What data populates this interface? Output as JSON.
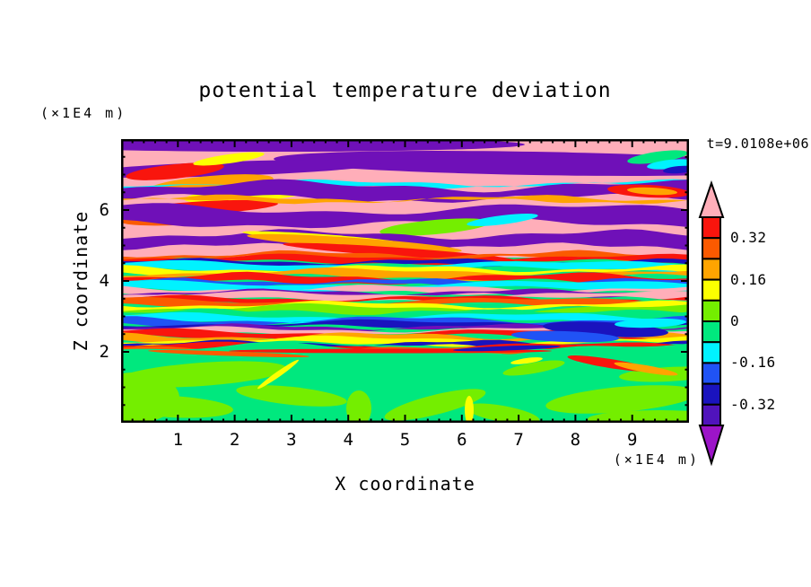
{
  "title": "potential temperature deviation",
  "annotations": {
    "y_units": "(×1E4 m)",
    "x_units": "(×1E4 m)",
    "time": "t=9.0108e+06"
  },
  "axes": {
    "x": {
      "label": "X coordinate",
      "min": 0,
      "max": 10,
      "major_ticks": [
        1,
        2,
        3,
        4,
        5,
        6,
        7,
        8,
        9
      ],
      "minor_step": 0.2
    },
    "y": {
      "label": "Z coordinate",
      "min": 0,
      "max": 8,
      "major_ticks": [
        2,
        4,
        6
      ],
      "minor_step": 0.5
    }
  },
  "palette": {
    "pk": "#FFAEB9",
    "rd": "#F9150D",
    "or": "#FB5A00",
    "oa": "#FFA400",
    "ye": "#FCFF00",
    "ch": "#74EE00",
    "sg": "#00E87E",
    "cy": "#00F2FF",
    "bl": "#2053F5",
    "nv": "#1A13BE",
    "vi": "#5013BC",
    "pu": "#6F10B8",
    "pa": "#9C14C8",
    "black": "#000000"
  },
  "colorbar": {
    "blocks_top_to_bottom": [
      "rd",
      "or",
      "oa",
      "ye",
      "ch",
      "sg",
      "cy",
      "bl",
      "nv",
      "vi"
    ],
    "top_arrow_color": "pk",
    "bottom_arrow_color": "pa",
    "labels": [
      {
        "text": "0.32",
        "boundary": 1
      },
      {
        "text": "0.16",
        "boundary": 3
      },
      {
        "text": "0",
        "boundary": 5
      },
      {
        "text": "-0.16",
        "boundary": 7
      },
      {
        "text": "-0.32",
        "boundary": 9
      }
    ]
  },
  "chart_data": {
    "type": "filled_contour",
    "title": "potential temperature deviation",
    "xlabel": "X coordinate",
    "ylabel": "Z coordinate",
    "units": "×1E4 m",
    "time_annotation": "t=9.0108e+06",
    "x_range": [
      0,
      10
    ],
    "z_range": [
      0,
      8
    ],
    "levels": [
      -0.4,
      -0.32,
      -0.24,
      -0.16,
      -0.08,
      0,
      0.08,
      0.16,
      0.24,
      0.32,
      0.4
    ],
    "level_colors_low_to_high": [
      "pa",
      "vi",
      "nv",
      "bl",
      "cy",
      "sg",
      "ch",
      "ye",
      "oa",
      "or",
      "rd",
      "pk"
    ],
    "description": "Stably layered wave/turbulence field: smooth near-zero (green) region below z=2; dense multicolor filaments (±0.1-0.3) between z=2 and z=4.7; broad alternating pink (>0.4) and purple (<-0.4) bands with thin rainbow edges from z=4.7 to top at z=8.",
    "paint": [
      [
        "rect",
        0,
        0,
        633,
        316,
        "sg"
      ],
      [
        "rect",
        0,
        0,
        633,
        132,
        "pk"
      ],
      [
        "ell",
        170,
        6,
        280,
        8,
        0,
        "pu"
      ],
      [
        "ell",
        460,
        27,
        290,
        13,
        1,
        "pu"
      ],
      [
        "ell",
        120,
        33,
        170,
        8,
        -2,
        "pu"
      ],
      [
        "ell",
        598,
        20,
        34,
        6,
        -8,
        "sg"
      ],
      [
        "ell",
        612,
        28,
        26,
        5,
        -6,
        "cy"
      ],
      [
        "ell",
        622,
        34,
        18,
        4,
        -5,
        "nv"
      ],
      [
        "ell",
        60,
        36,
        55,
        8,
        -6,
        "rd"
      ],
      [
        "ell",
        100,
        50,
        70,
        9,
        -5,
        "oa"
      ],
      [
        "ell",
        140,
        62,
        70,
        8,
        -4,
        "ye"
      ],
      [
        "ell",
        95,
        76,
        80,
        7,
        -3,
        "rd"
      ],
      [
        "ell",
        60,
        90,
        60,
        6,
        -2,
        "or"
      ],
      [
        "ell",
        120,
        22,
        40,
        5,
        -8,
        "ye"
      ],
      [
        "rib",
        49,
        52,
        "cy",
        3,
        0.8,
        1.7
      ],
      [
        "rib",
        52,
        66,
        "pu",
        5,
        2.0,
        1.5
      ],
      [
        "rib",
        66,
        69,
        "oa",
        3,
        2.6,
        1.9
      ],
      [
        "ell",
        588,
        58,
        46,
        7,
        3,
        "rd"
      ],
      [
        "ell",
        592,
        58,
        28,
        4,
        3,
        "oa"
      ],
      [
        "rib",
        78,
        94,
        "pu",
        5,
        4.6,
        1.3
      ],
      [
        "ell",
        350,
        98,
        62,
        8,
        -5,
        "ch"
      ],
      [
        "ell",
        425,
        90,
        40,
        5,
        -7,
        "cy"
      ],
      [
        "rib",
        106,
        120,
        "pu",
        4,
        1.2,
        1.8
      ],
      [
        "ell",
        225,
        110,
        90,
        4,
        4,
        "ye"
      ],
      [
        "ell",
        260,
        116,
        120,
        6,
        4,
        "oa"
      ],
      [
        "ell",
        310,
        126,
        130,
        5,
        4,
        "rd"
      ],
      [
        "rib",
        128,
        133,
        "or",
        3,
        0.5,
        2.1
      ],
      [
        "rib",
        132,
        137,
        "rd",
        3,
        1.7,
        1.6
      ],
      [
        "rib",
        136,
        140,
        "nv",
        2.5,
        2.9,
        2.3
      ],
      [
        "rib",
        139,
        145,
        "cy",
        3,
        4.1,
        1.4
      ],
      [
        "rib",
        144,
        149,
        "ye",
        3,
        5.3,
        1.9
      ],
      [
        "rib",
        148,
        154,
        "oa",
        3.5,
        0.9,
        1.5
      ],
      [
        "rib",
        153,
        159,
        "rd",
        3.5,
        2.2,
        1.8
      ],
      [
        "rib",
        158,
        162,
        "bl",
        2.5,
        3.4,
        2.4
      ],
      [
        "rib",
        161,
        167,
        "cy",
        3,
        4.6,
        1.3
      ],
      [
        "rib",
        166,
        171,
        "pk",
        3,
        5.8,
        1.7
      ],
      [
        "rib",
        170,
        174,
        "pu",
        2.5,
        1.1,
        2.2
      ],
      [
        "rib",
        173,
        178,
        "pk",
        3,
        2.4,
        1.5
      ],
      [
        "rib",
        177,
        181,
        "rd",
        2.5,
        3.6,
        2.0
      ],
      [
        "rib",
        180,
        185,
        "or",
        3,
        4.8,
        1.4
      ],
      [
        "rib",
        184,
        189,
        "ye",
        3,
        0.3,
        1.8
      ],
      [
        "rib",
        188,
        194,
        "ch",
        3.5,
        1.5,
        1.5
      ],
      [
        "rib",
        193,
        198,
        "sg",
        3,
        2.7,
        2.1
      ],
      [
        "rib",
        197,
        202,
        "cy",
        3,
        3.9,
        1.6
      ],
      [
        "rib",
        201,
        206,
        "bl",
        3,
        5.1,
        1.9
      ],
      [
        "rib",
        205,
        210,
        "nv",
        3,
        0.6,
        1.4
      ],
      [
        "rib",
        209,
        213,
        "pu",
        2.5,
        1.8,
        2.2
      ],
      [
        "rib",
        212,
        216,
        "pk",
        2.5,
        3.0,
        1.7
      ],
      [
        "rib",
        215,
        220,
        "rd",
        3,
        4.2,
        1.5
      ],
      [
        "rib",
        219,
        224,
        "oa",
        3,
        5.4,
        2.0
      ],
      [
        "rib",
        223,
        228,
        "ye",
        3,
        0.8,
        1.6
      ],
      [
        "rib",
        227,
        231,
        "nv",
        2.5,
        2.0,
        2.3
      ],
      [
        "rib",
        230,
        235,
        "rd",
        3,
        3.2,
        1.5
      ],
      [
        "rib",
        234,
        238,
        "or",
        2.5,
        4.4,
        1.9
      ],
      [
        "ell",
        540,
        212,
        70,
        8,
        3,
        "nv"
      ],
      [
        "ell",
        495,
        220,
        60,
        6,
        2,
        "bl"
      ],
      [
        "ell",
        590,
        205,
        40,
        5,
        -2,
        "cy"
      ],
      [
        "rib",
        233,
        320,
        "sg",
        5,
        2.3,
        1.4
      ],
      [
        "ell",
        90,
        262,
        95,
        13,
        -4,
        "ch"
      ],
      [
        "ell",
        55,
        298,
        70,
        12,
        3,
        "ch"
      ],
      [
        "ell",
        190,
        286,
        62,
        10,
        6,
        "ch"
      ],
      [
        "ell",
        265,
        300,
        14,
        20,
        0,
        "ch"
      ],
      [
        "ell",
        350,
        296,
        58,
        11,
        -14,
        "ch"
      ],
      [
        "ell",
        425,
        306,
        42,
        9,
        10,
        "ch"
      ],
      [
        "ell",
        558,
        290,
        85,
        14,
        -5,
        "ch"
      ],
      [
        "ell",
        610,
        262,
        55,
        8,
        -3,
        "ch"
      ],
      [
        "ell",
        600,
        312,
        80,
        10,
        0,
        "ch"
      ],
      [
        "ell",
        15,
        288,
        50,
        28,
        0,
        "ch"
      ],
      [
        "ell",
        460,
        255,
        35,
        6,
        -10,
        "ch"
      ],
      [
        "ell",
        175,
        262,
        28,
        3,
        -35,
        "ye"
      ],
      [
        "ell",
        388,
        302,
        5,
        16,
        0,
        "ye"
      ],
      [
        "ell",
        452,
        247,
        18,
        3,
        -8,
        "ye"
      ],
      [
        "ell",
        300,
        236,
        180,
        2.5,
        0,
        "rd"
      ],
      [
        "ell",
        120,
        239,
        90,
        2.5,
        2,
        "or"
      ],
      [
        "ell",
        430,
        233,
        60,
        2.5,
        -2,
        "nv"
      ],
      [
        "ell",
        545,
        250,
        48,
        5,
        9,
        "rd"
      ],
      [
        "ell",
        585,
        256,
        36,
        4,
        10,
        "oa"
      ]
    ]
  }
}
